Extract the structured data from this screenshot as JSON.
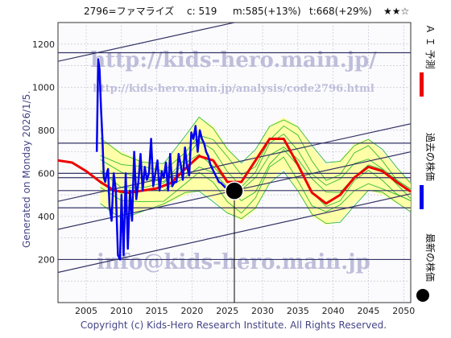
{
  "header": {
    "title": "2796=ファマライズ",
    "current": "c: 519",
    "m_target": "m:585(+13%)",
    "t_target": "t:668(+29%)",
    "rating": "★★☆"
  },
  "side_label": "Generated on Monday 2026/1/5.",
  "copyright": "Copyright (c) Kids-Hero Research Institute. All Rights Reserved.",
  "watermarks": {
    "url": "http://kids-hero.main.jp/",
    "analysis_url": "http://kids-hero.main.jp/analysis/code2796.html",
    "email": "info@kids-hero.main.jp"
  },
  "legend": {
    "ai_forecast": "Ａ Ｉ 予測",
    "past_price": "過去の株価",
    "latest_price": "最新の株価"
  },
  "colors": {
    "ai_forecast": "#ee0000",
    "past_price": "#0000ee",
    "latest_price": "#000000",
    "band_fill": "#ffff99",
    "band_lines": "#33bb33",
    "channel_lines": "#333366",
    "grid": "#bbbbcc"
  },
  "chart_data": {
    "type": "line",
    "xlim": [
      2001,
      2051
    ],
    "ylim": [
      0,
      1300
    ],
    "x_ticks": [
      2005,
      2010,
      2015,
      2020,
      2025,
      2030,
      2035,
      2040,
      2045,
      2050
    ],
    "y_ticks": [
      200,
      400,
      600,
      800,
      1000,
      1200
    ],
    "horizontal_lines": [
      200,
      440,
      520,
      580,
      600,
      740,
      1160
    ],
    "channel_lines": [
      {
        "from": [
          2001,
          140
        ],
        "to": [
          2051,
          505
        ]
      },
      {
        "from": [
          2001,
          340
        ],
        "to": [
          2051,
          700
        ]
      },
      {
        "from": [
          2001,
          470
        ],
        "to": [
          2051,
          830
        ]
      },
      {
        "from": [
          2001,
          1120
        ],
        "to": [
          2051,
          1480
        ]
      }
    ],
    "latest_point": {
      "x": 2026.0,
      "y": 519
    },
    "series": [
      {
        "key": "past_price",
        "x": [
          2006.5,
          2006.7,
          2006.9,
          2007.1,
          2007.3,
          2007.5,
          2007.7,
          2007.9,
          2008.1,
          2008.3,
          2008.6,
          2008.9,
          2009.2,
          2009.5,
          2009.8,
          2010.0,
          2010.3,
          2010.6,
          2010.9,
          2011.2,
          2011.5,
          2011.8,
          2012.1,
          2012.4,
          2012.7,
          2013.0,
          2013.3,
          2013.6,
          2013.9,
          2014.2,
          2014.5,
          2014.8,
          2015.1,
          2015.4,
          2015.7,
          2016.0,
          2016.3,
          2016.6,
          2016.9,
          2017.2,
          2017.5,
          2017.8,
          2018.1,
          2018.4,
          2018.7,
          2019.0,
          2019.3,
          2019.6,
          2019.9,
          2020.2,
          2020.5,
          2020.8,
          2021.1,
          2021.4,
          2021.7,
          2022.0,
          2022.3,
          2022.6,
          2022.9,
          2023.2,
          2023.5,
          2023.8,
          2024.1,
          2024.4,
          2024.7,
          2025.0,
          2025.3,
          2025.6,
          2026.0
        ],
        "y": [
          700,
          1130,
          1080,
          900,
          760,
          580,
          560,
          600,
          620,
          450,
          380,
          600,
          520,
          220,
          200,
          500,
          220,
          600,
          250,
          520,
          380,
          700,
          480,
          560,
          690,
          520,
          630,
          570,
          600,
          760,
          540,
          600,
          660,
          520,
          610,
          580,
          650,
          520,
          690,
          540,
          560,
          560,
          690,
          640,
          570,
          720,
          630,
          590,
          790,
          760,
          820,
          700,
          800,
          760,
          740,
          700,
          680,
          640,
          620,
          600,
          580,
          560,
          555,
          545,
          535,
          530,
          525,
          520,
          519
        ]
      },
      {
        "key": "ai_forecast",
        "x": [
          2001,
          2003,
          2005,
          2007,
          2009,
          2011,
          2013,
          2015,
          2017,
          2019,
          2021,
          2023,
          2025,
          2027,
          2029,
          2031,
          2033,
          2035,
          2037,
          2039,
          2041,
          2043,
          2045,
          2047,
          2049,
          2051
        ],
        "y": [
          660,
          650,
          610,
          560,
          520,
          510,
          520,
          530,
          555,
          620,
          680,
          660,
          560,
          560,
          660,
          760,
          760,
          640,
          510,
          460,
          500,
          580,
          630,
          610,
          560,
          515
        ]
      },
      {
        "key": "band_upper",
        "x": [
          2007,
          2010,
          2013,
          2016,
          2019,
          2021,
          2023,
          2025,
          2027,
          2029,
          2031,
          2033,
          2035,
          2037,
          2039,
          2041,
          2043,
          2045,
          2047,
          2049,
          2051
        ],
        "y": [
          760,
          700,
          660,
          640,
          760,
          860,
          820,
          720,
          640,
          700,
          820,
          860,
          820,
          720,
          640,
          660,
          740,
          760,
          700,
          620,
          560
        ]
      },
      {
        "key": "band_lower",
        "x": [
          2007,
          2010,
          2013,
          2016,
          2019,
          2021,
          2023,
          2025,
          2027,
          2029,
          2031,
          2033,
          2035,
          2037,
          2039,
          2041,
          2043,
          2045,
          2047,
          2049,
          2051
        ],
        "y": [
          460,
          400,
          430,
          450,
          500,
          520,
          480,
          420,
          380,
          430,
          560,
          620,
          520,
          400,
          360,
          380,
          460,
          520,
          500,
          460,
          430
        ]
      }
    ]
  }
}
